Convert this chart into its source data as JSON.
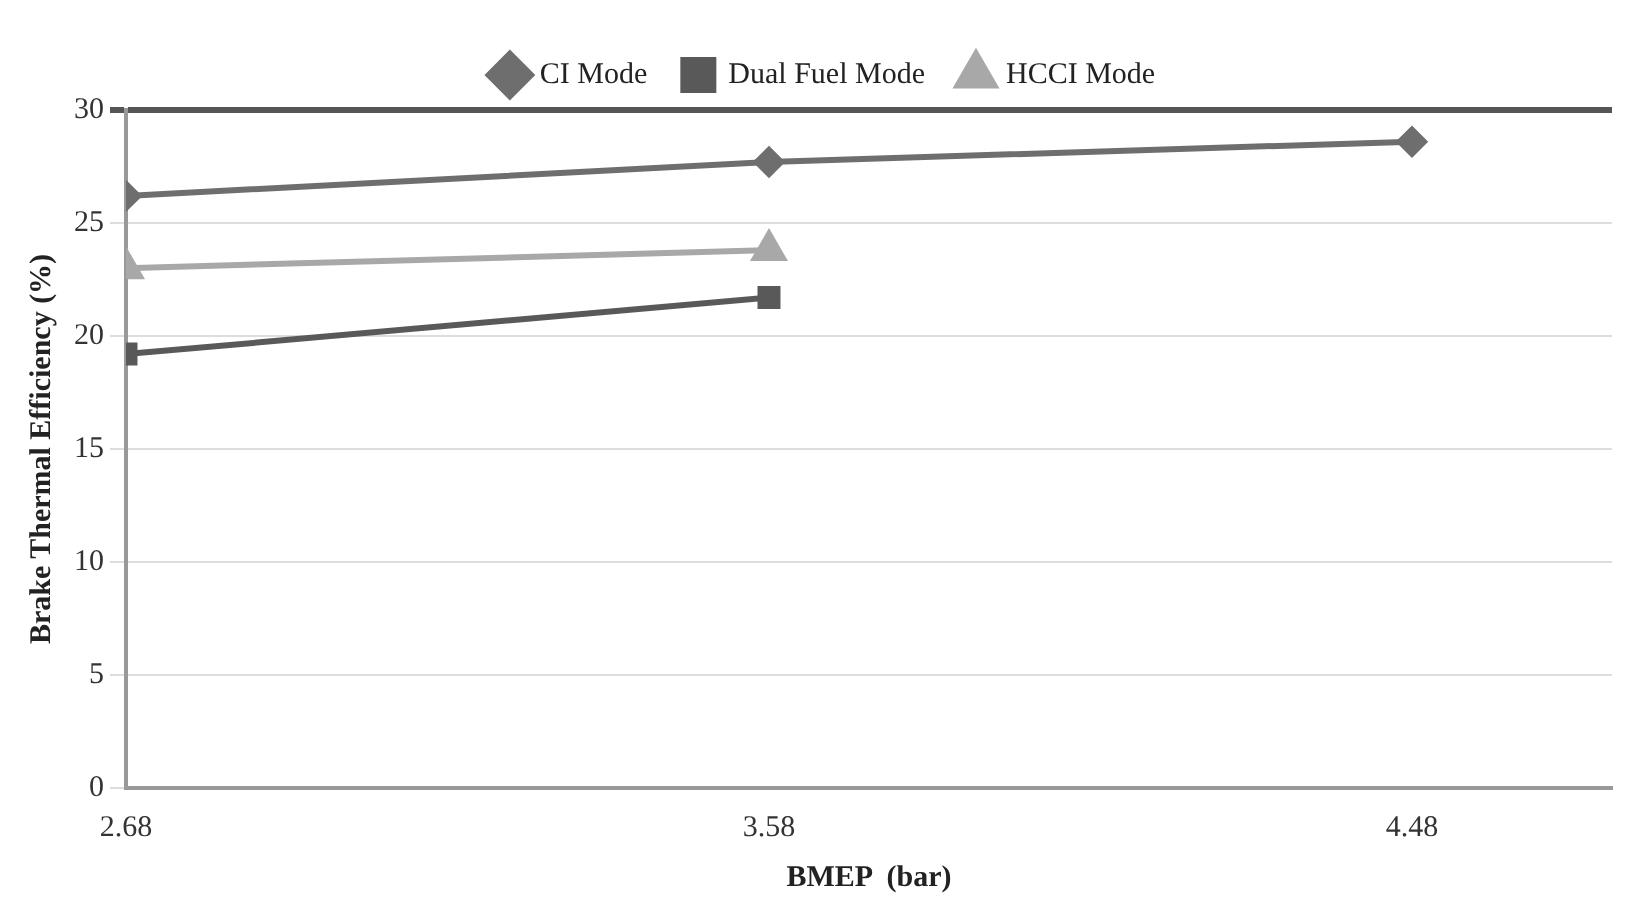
{
  "chart_data": {
    "type": "line",
    "xlabel": "BMEP  (bar)",
    "ylabel": "Brake Thermal Efficiency (%)",
    "series": [
      {
        "name": "CI Mode",
        "color": "#6e6e6e",
        "marker": "diamond",
        "x": [
          2.68,
          3.58,
          4.48
        ],
        "values": [
          26.2,
          27.7,
          28.6
        ]
      },
      {
        "name": "Dual Fuel Mode",
        "color": "#595959",
        "marker": "square",
        "x": [
          2.68,
          3.58
        ],
        "values": [
          19.2,
          21.7
        ]
      },
      {
        "name": "HCCI Mode",
        "color": "#a8a8a8",
        "marker": "triangle",
        "x": [
          2.68,
          3.58
        ],
        "values": [
          23.0,
          23.8
        ]
      }
    ],
    "xlim": [
      2.68,
      4.76
    ],
    "xticks": [
      2.68,
      3.58,
      4.48
    ],
    "ylim": [
      0,
      30
    ],
    "yticks": [
      0,
      5,
      10,
      15,
      20,
      25,
      30
    ],
    "grid": "y",
    "legend": "top"
  }
}
